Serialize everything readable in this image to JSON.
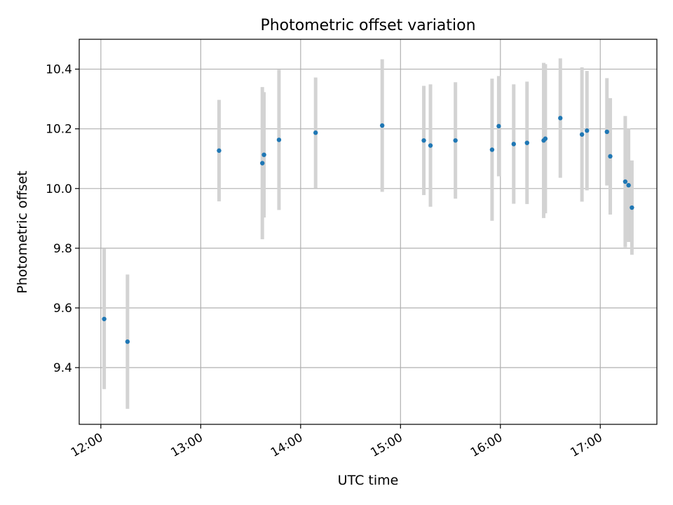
{
  "chart_data": {
    "type": "scatter",
    "title": "Photometric offset variation",
    "xlabel": "UTC time",
    "ylabel": "Photometric offset",
    "x_tick_labels": [
      "12:00",
      "13:00",
      "14:00",
      "15:00",
      "16:00",
      "17:00"
    ],
    "y_tick_labels": [
      "9.4",
      "9.6",
      "9.8",
      "10.0",
      "10.2",
      "10.4"
    ],
    "xlim": [
      "11:47",
      "17:34"
    ],
    "ylim": [
      9.21,
      10.5
    ],
    "grid": true,
    "point_color": "#1f77b4",
    "errorbar_color": "#d3d3d3",
    "series": [
      {
        "points": [
          {
            "t": "12:02",
            "y": 9.563,
            "yerr": 0.235
          },
          {
            "t": "12:16",
            "y": 9.487,
            "yerr": 0.225
          },
          {
            "t": "13:11",
            "y": 10.127,
            "yerr": 0.17
          },
          {
            "t": "13:37",
            "y": 10.085,
            "yerr": 0.255
          },
          {
            "t": "13:38",
            "y": 10.113,
            "yerr": 0.21
          },
          {
            "t": "13:47",
            "y": 10.163,
            "yerr": 0.235
          },
          {
            "t": "14:09",
            "y": 10.187,
            "yerr": 0.185
          },
          {
            "t": "14:49",
            "y": 10.211,
            "yerr": 0.222
          },
          {
            "t": "15:14",
            "y": 10.161,
            "yerr": 0.183
          },
          {
            "t": "15:18",
            "y": 10.144,
            "yerr": 0.205
          },
          {
            "t": "15:33",
            "y": 10.161,
            "yerr": 0.195
          },
          {
            "t": "15:55",
            "y": 10.13,
            "yerr": 0.238
          },
          {
            "t": "15:59",
            "y": 10.209,
            "yerr": 0.168
          },
          {
            "t": "16:08",
            "y": 10.149,
            "yerr": 0.2
          },
          {
            "t": "16:16",
            "y": 10.153,
            "yerr": 0.205
          },
          {
            "t": "16:26",
            "y": 10.161,
            "yerr": 0.26
          },
          {
            "t": "16:27",
            "y": 10.167,
            "yerr": 0.25
          },
          {
            "t": "16:36",
            "y": 10.236,
            "yerr": 0.2
          },
          {
            "t": "16:49",
            "y": 10.181,
            "yerr": 0.225
          },
          {
            "t": "16:52",
            "y": 10.194,
            "yerr": 0.2
          },
          {
            "t": "17:04",
            "y": 10.19,
            "yerr": 0.18
          },
          {
            "t": "17:06",
            "y": 10.108,
            "yerr": 0.195
          },
          {
            "t": "17:15",
            "y": 10.023,
            "yerr": 0.22
          },
          {
            "t": "17:17",
            "y": 10.011,
            "yerr": 0.19
          },
          {
            "t": "17:19",
            "y": 9.936,
            "yerr": 0.158
          }
        ]
      }
    ]
  }
}
